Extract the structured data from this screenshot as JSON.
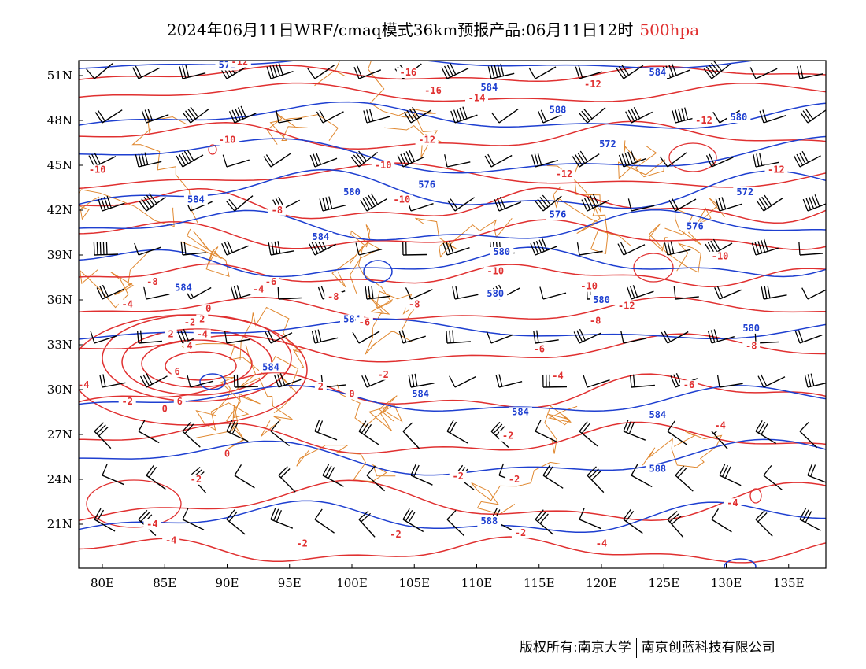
{
  "title": {
    "main": "2024年06月11日WRF/cmaq模式36km预报产品:06月11日12时",
    "level": "500hpa"
  },
  "credit": {
    "left": "版权所有:南京大学",
    "right": "南京创蓝科技有限公司"
  },
  "axes": {
    "lat_ticks": [
      "51N",
      "48N",
      "45N",
      "42N",
      "39N",
      "36N",
      "33N",
      "30N",
      "27N",
      "24N",
      "21N"
    ],
    "lon_ticks": [
      "80E",
      "85E",
      "90E",
      "95E",
      "100E",
      "105E",
      "110E",
      "115E",
      "120E",
      "125E",
      "130E",
      "135E"
    ]
  },
  "colors": {
    "geopotential": "#1e3fd0",
    "temperature": "#e03030",
    "boundaries": "#e08830",
    "wind_barbs": "#000000",
    "title_level": "#e03030"
  },
  "geopotential_labels": [
    {
      "text": "576",
      "lon": 90,
      "lat": 51.5
    },
    {
      "text": "584",
      "lon": 124.5,
      "lat": 51
    },
    {
      "text": "584",
      "lon": 111,
      "lat": 50
    },
    {
      "text": "588",
      "lon": 116.5,
      "lat": 48.5
    },
    {
      "text": "580",
      "lon": 131,
      "lat": 48
    },
    {
      "text": "572",
      "lon": 120.5,
      "lat": 46.2
    },
    {
      "text": "576",
      "lon": 106,
      "lat": 43.5
    },
    {
      "text": "580",
      "lon": 100,
      "lat": 43
    },
    {
      "text": "572",
      "lon": 131.5,
      "lat": 43
    },
    {
      "text": "584",
      "lon": 87.5,
      "lat": 42.5
    },
    {
      "text": "576",
      "lon": 116.5,
      "lat": 41.5
    },
    {
      "text": "576",
      "lon": 127.5,
      "lat": 40.7
    },
    {
      "text": "584",
      "lon": 97.5,
      "lat": 40
    },
    {
      "text": "580",
      "lon": 112,
      "lat": 39
    },
    {
      "text": "584",
      "lon": 86.5,
      "lat": 36.6
    },
    {
      "text": "580",
      "lon": 111.5,
      "lat": 36.2
    },
    {
      "text": "580",
      "lon": 120,
      "lat": 35.8
    },
    {
      "text": "584",
      "lon": 100,
      "lat": 34.5
    },
    {
      "text": "580",
      "lon": 132,
      "lat": 33.9
    },
    {
      "text": "584",
      "lon": 93.5,
      "lat": 31.3
    },
    {
      "text": "584",
      "lon": 105.5,
      "lat": 29.5
    },
    {
      "text": "584",
      "lon": 113.5,
      "lat": 28.3
    },
    {
      "text": "584",
      "lon": 124.5,
      "lat": 28.1
    },
    {
      "text": "588",
      "lon": 124.5,
      "lat": 24.5
    },
    {
      "text": "588",
      "lon": 111,
      "lat": 21
    }
  ],
  "temperature_labels": [
    {
      "text": "-12",
      "lon": 91,
      "lat": 51.7
    },
    {
      "text": "-16",
      "lon": 104.5,
      "lat": 51
    },
    {
      "text": "-16",
      "lon": 106.5,
      "lat": 49.8
    },
    {
      "text": "-14",
      "lon": 110,
      "lat": 49.3
    },
    {
      "text": "-12",
      "lon": 119.3,
      "lat": 50.2
    },
    {
      "text": "-12",
      "lon": 106,
      "lat": 46.5
    },
    {
      "text": "-12",
      "lon": 128.2,
      "lat": 47.8
    },
    {
      "text": "-10",
      "lon": 90,
      "lat": 46.5
    },
    {
      "text": "-10",
      "lon": 79.6,
      "lat": 44.5
    },
    {
      "text": "-10",
      "lon": 102.5,
      "lat": 44.8
    },
    {
      "text": "-12",
      "lon": 117,
      "lat": 44.2
    },
    {
      "text": "-12",
      "lon": 134,
      "lat": 44.5
    },
    {
      "text": "-10",
      "lon": 104,
      "lat": 42.5
    },
    {
      "text": "-8",
      "lon": 94,
      "lat": 41.8
    },
    {
      "text": "-10",
      "lon": 129.5,
      "lat": 38.7
    },
    {
      "text": "-10",
      "lon": 111.5,
      "lat": 37.7
    },
    {
      "text": "-10",
      "lon": 119,
      "lat": 36.7
    },
    {
      "text": "-12",
      "lon": 122,
      "lat": 35.4
    },
    {
      "text": "-8",
      "lon": 84,
      "lat": 37
    },
    {
      "text": "-8",
      "lon": 98.5,
      "lat": 36
    },
    {
      "text": "-8",
      "lon": 105,
      "lat": 35.5
    },
    {
      "text": "-8",
      "lon": 119.5,
      "lat": 34.4
    },
    {
      "text": "-8",
      "lon": 132,
      "lat": 32.7
    },
    {
      "text": "-6",
      "lon": 93.5,
      "lat": 37
    },
    {
      "text": "-6",
      "lon": 101,
      "lat": 34.3
    },
    {
      "text": "-6",
      "lon": 115,
      "lat": 32.5
    },
    {
      "text": "-6",
      "lon": 127,
      "lat": 30.1
    },
    {
      "text": "-4",
      "lon": 92.5,
      "lat": 36.5
    },
    {
      "text": "-4",
      "lon": 82,
      "lat": 35.5
    },
    {
      "text": "-4",
      "lon": 116.5,
      "lat": 30.7
    },
    {
      "text": "-4",
      "lon": 129.5,
      "lat": 27.4
    },
    {
      "text": "-4",
      "lon": 130.5,
      "lat": 22.2
    },
    {
      "text": "-4",
      "lon": 120,
      "lat": 19.5
    },
    {
      "text": "-4",
      "lon": 84,
      "lat": 20.8
    },
    {
      "text": "-4",
      "lon": 85.5,
      "lat": 19.7
    },
    {
      "text": "-4",
      "lon": 88,
      "lat": 33.5
    },
    {
      "text": "-4",
      "lon": 78.5,
      "lat": 30.1
    },
    {
      "text": "-2",
      "lon": 87,
      "lat": 34.3
    },
    {
      "text": "-2",
      "lon": 102.5,
      "lat": 30.8
    },
    {
      "text": "-2",
      "lon": 82,
      "lat": 29
    },
    {
      "text": "-2",
      "lon": 112.5,
      "lat": 26.7
    },
    {
      "text": "-2",
      "lon": 108.5,
      "lat": 24
    },
    {
      "text": "-2",
      "lon": 113,
      "lat": 23.8
    },
    {
      "text": "-2",
      "lon": 87.5,
      "lat": 23.8
    },
    {
      "text": "-2",
      "lon": 103.5,
      "lat": 20.1
    },
    {
      "text": "-2",
      "lon": 96,
      "lat": 19.5
    },
    {
      "text": "-2",
      "lon": 113.5,
      "lat": 20.2
    },
    {
      "text": "0",
      "lon": 88.5,
      "lat": 35.2
    },
    {
      "text": "0",
      "lon": 85,
      "lat": 28.5
    },
    {
      "text": "0",
      "lon": 100,
      "lat": 29.5
    },
    {
      "text": "0",
      "lon": 90,
      "lat": 25.5
    },
    {
      "text": "2",
      "lon": 88,
      "lat": 34.5
    },
    {
      "text": "2",
      "lon": 85.5,
      "lat": 33.5
    },
    {
      "text": "2",
      "lon": 97.5,
      "lat": 30
    },
    {
      "text": "4",
      "lon": 87,
      "lat": 32.7
    },
    {
      "text": "6",
      "lon": 86,
      "lat": 31
    },
    {
      "text": "6",
      "lon": 86.2,
      "lat": 29
    }
  ]
}
